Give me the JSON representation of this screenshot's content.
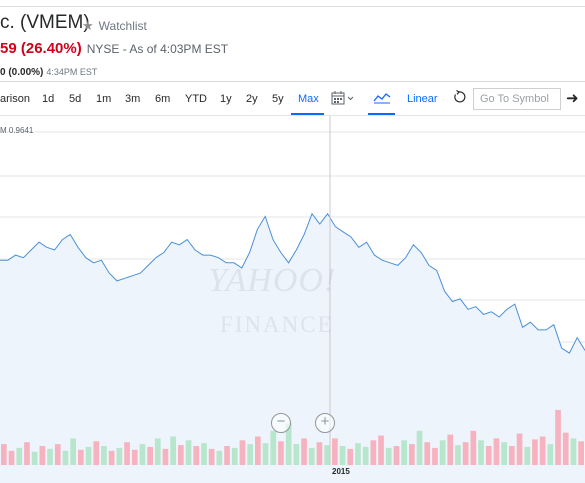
{
  "header": {
    "title": "c. (VMEM)",
    "watchlist_label": "Watchlist",
    "price_change": "59 (26.40%)",
    "price_meta": "NYSE - As of 4:03PM EST",
    "after_hours_change": "0 (0.00%)",
    "after_hours_time": "4:34PM EST"
  },
  "toolbar": {
    "comparison_label": "arison",
    "ranges": [
      "1d",
      "5d",
      "1m",
      "3m",
      "6m",
      "YTD",
      "1y",
      "2y",
      "5y",
      "Max"
    ],
    "active_range": "Max",
    "scale_label": "Linear",
    "symbol_placeholder": "Go To Symbol",
    "icons": [
      "calendar-icon",
      "chevron-down-icon",
      "line-chart-icon",
      "reset-icon",
      "arrow-right-icon"
    ]
  },
  "chart": {
    "hover_label": "M 0.9641",
    "x_tick_label": "2015",
    "watermark_line1": "YAHOO!",
    "watermark_line2": "FINANCE",
    "zoom_out_icon": "zoom-out-icon",
    "zoom_in_icon": "zoom-in-icon",
    "colors": {
      "line": "#4a90d9",
      "area": "#eef4fb",
      "volume_up": "#b8e6cc",
      "volume_down": "#f6b3bf",
      "grid": "#e6e6e6",
      "crosshair": "#c8c8c8",
      "accent": "#0f69ff",
      "negative": "#d0021b"
    }
  },
  "chart_data": {
    "type": "area",
    "price_series": [
      0.72,
      0.72,
      0.74,
      0.73,
      0.76,
      0.79,
      0.77,
      0.76,
      0.8,
      0.82,
      0.77,
      0.73,
      0.71,
      0.72,
      0.67,
      0.64,
      0.65,
      0.66,
      0.67,
      0.7,
      0.73,
      0.75,
      0.79,
      0.78,
      0.8,
      0.76,
      0.74,
      0.74,
      0.73,
      0.71,
      0.71,
      0.69,
      0.75,
      0.84,
      0.89,
      0.8,
      0.75,
      0.71,
      0.76,
      0.82,
      0.9,
      0.86,
      0.9,
      0.85,
      0.83,
      0.81,
      0.77,
      0.79,
      0.74,
      0.72,
      0.71,
      0.7,
      0.73,
      0.78,
      0.75,
      0.7,
      0.68,
      0.6,
      0.56,
      0.57,
      0.53,
      0.54,
      0.51,
      0.52,
      0.5,
      0.53,
      0.55,
      0.46,
      0.48,
      0.45,
      0.45,
      0.47,
      0.38,
      0.36,
      0.42,
      0.37
    ],
    "volume_series": [
      0.22,
      0.15,
      0.18,
      0.24,
      0.14,
      0.2,
      0.17,
      0.22,
      0.15,
      0.28,
      0.16,
      0.19,
      0.25,
      0.2,
      0.15,
      0.18,
      0.24,
      0.16,
      0.22,
      0.19,
      0.28,
      0.17,
      0.3,
      0.21,
      0.26,
      0.2,
      0.23,
      0.17,
      0.15,
      0.2,
      0.18,
      0.26,
      0.22,
      0.3,
      0.23,
      0.36,
      0.25,
      0.44,
      0.22,
      0.28,
      0.18,
      0.24,
      0.21,
      0.28,
      0.2,
      0.17,
      0.23,
      0.19,
      0.26,
      0.31,
      0.18,
      0.2,
      0.26,
      0.22,
      0.36,
      0.24,
      0.18,
      0.26,
      0.32,
      0.21,
      0.24,
      0.36,
      0.26,
      0.2,
      0.28,
      0.24,
      0.2,
      0.33,
      0.19,
      0.27,
      0.3,
      0.22,
      0.58,
      0.34,
      0.28,
      0.25
    ],
    "volume_direction": [
      "down",
      "down",
      "up",
      "down",
      "up",
      "down",
      "up",
      "down",
      "up",
      "up",
      "down",
      "up",
      "down",
      "up",
      "down",
      "up",
      "down",
      "down",
      "up",
      "down",
      "up",
      "down",
      "up",
      "down",
      "up",
      "down",
      "up",
      "down",
      "up",
      "down",
      "up",
      "down",
      "up",
      "down",
      "up",
      "up",
      "down",
      "up",
      "up",
      "down",
      "up",
      "down",
      "up",
      "down",
      "up",
      "down",
      "up",
      "up",
      "down",
      "down",
      "up",
      "down",
      "up",
      "down",
      "up",
      "down",
      "down",
      "up",
      "down",
      "up",
      "down",
      "down",
      "up",
      "down",
      "down",
      "up",
      "down",
      "down",
      "up",
      "down",
      "down",
      "up",
      "down",
      "down",
      "up",
      "down"
    ],
    "x_tick_labels": [
      "2015"
    ],
    "hover_value": 0.9641,
    "scale": "linear"
  }
}
